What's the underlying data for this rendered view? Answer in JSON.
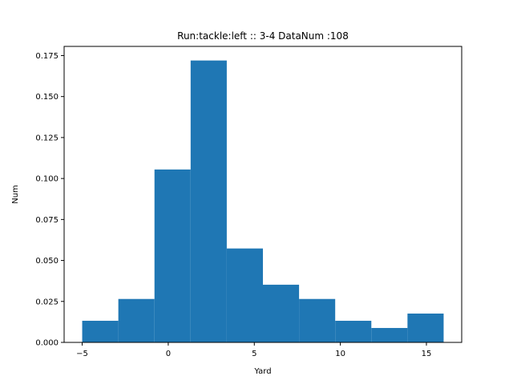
{
  "chart_data": {
    "type": "bar",
    "title": "Run:tackle:left :: 3-4    DataNum :108",
    "xlabel": "Yard",
    "ylabel": "Num",
    "bin_edges": [
      -5,
      -2.9,
      -0.8,
      1.3,
      3.4,
      5.5,
      7.6,
      9.7,
      11.8,
      13.9,
      16
    ],
    "values": [
      0.0132,
      0.0265,
      0.1055,
      0.172,
      0.0573,
      0.0352,
      0.0265,
      0.0132,
      0.0088,
      0.0176
    ],
    "xlim": [
      -6.05,
      17.05
    ],
    "ylim": [
      0,
      0.1806
    ],
    "xticks": [
      -5,
      0,
      5,
      10,
      15
    ],
    "yticks": [
      0.0,
      0.025,
      0.05,
      0.075,
      0.1,
      0.125,
      0.15,
      0.175
    ],
    "ytick_labels": [
      "0.000",
      "0.025",
      "0.050",
      "0.075",
      "0.100",
      "0.125",
      "0.150",
      "0.175"
    ],
    "bar_color": "#1f77b4",
    "grid": false
  }
}
